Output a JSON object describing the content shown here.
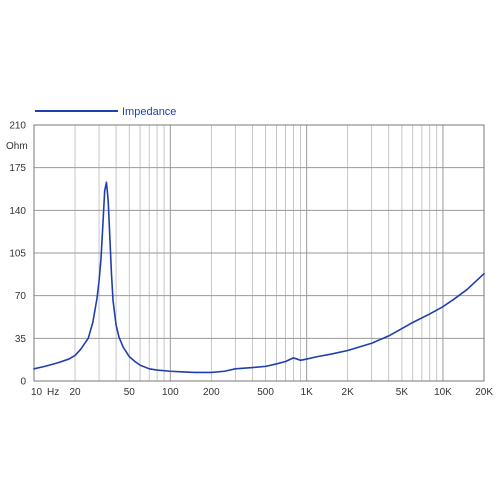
{
  "chart_data": {
    "type": "line",
    "title": "",
    "xscale": "log",
    "xlim": [
      10,
      20000
    ],
    "ylim": [
      0,
      210
    ],
    "ylabel": "Ohm",
    "xunit": "Hz",
    "grid": true,
    "legend": {
      "placement": "top-left",
      "entries": [
        "Impedance"
      ]
    },
    "x_ticks": [
      {
        "value": 10,
        "label": "10"
      },
      {
        "value": 20,
        "label": "20"
      },
      {
        "value": 50,
        "label": "50"
      },
      {
        "value": 100,
        "label": "100"
      },
      {
        "value": 200,
        "label": "200"
      },
      {
        "value": 500,
        "label": "500"
      },
      {
        "value": 1000,
        "label": "1K"
      },
      {
        "value": 2000,
        "label": "2K"
      },
      {
        "value": 5000,
        "label": "5K"
      },
      {
        "value": 10000,
        "label": "10K"
      },
      {
        "value": 20000,
        "label": "20K"
      }
    ],
    "y_ticks": [
      0,
      35,
      70,
      105,
      140,
      175,
      210
    ],
    "series": [
      {
        "name": "Impedance",
        "color": "#1f3fae",
        "x": [
          10,
          12,
          15,
          18,
          20,
          22,
          25,
          27,
          29,
          30,
          31,
          32,
          33,
          34,
          35,
          36,
          37,
          38,
          40,
          42,
          45,
          50,
          55,
          60,
          70,
          80,
          100,
          120,
          150,
          200,
          250,
          300,
          400,
          500,
          600,
          700,
          800,
          850,
          900,
          950,
          1000,
          1200,
          1500,
          2000,
          3000,
          4000,
          5000,
          6000,
          8000,
          10000,
          12000,
          15000,
          20000
        ],
        "values": [
          10,
          12,
          15,
          18,
          21,
          26,
          35,
          48,
          68,
          82,
          100,
          128,
          156,
          163,
          148,
          118,
          88,
          66,
          46,
          36,
          28,
          20,
          16,
          13,
          10,
          9,
          8,
          7.5,
          7,
          7,
          8,
          10,
          11,
          12,
          14,
          16,
          19,
          18,
          17,
          17.5,
          18,
          20,
          22,
          25,
          31,
          37,
          43,
          48,
          55,
          61,
          67,
          75,
          88
        ]
      }
    ]
  }
}
